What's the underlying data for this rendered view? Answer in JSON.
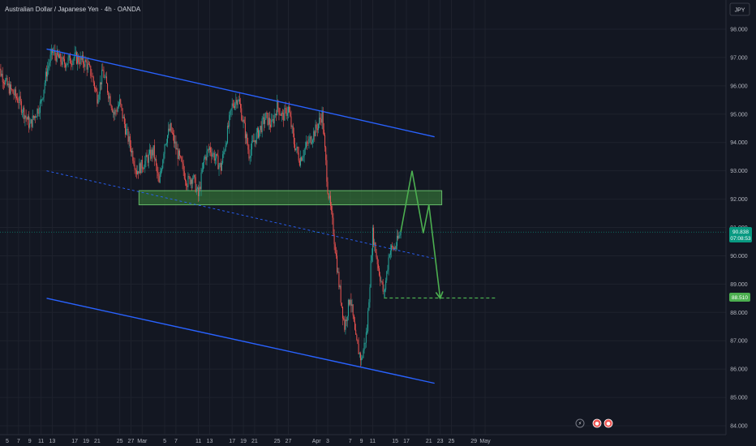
{
  "header": {
    "symbol_title": "Australian Dollar / Japanese Yen · 4h · OANDA",
    "currency_button": "JPY"
  },
  "colors": {
    "background": "#131722",
    "grid": "#1e222d",
    "candle_up": "#26a69a",
    "candle_down": "#ef5350",
    "channel_line": "#2962ff",
    "zone_fill": "#3c8a3c",
    "zone_border": "#66bb6a",
    "projection": "#4caf50",
    "axis_text": "#b2b5be"
  },
  "price_tags": {
    "current_price": "90.838",
    "countdown": "07:08:53",
    "target_price": "88.510"
  },
  "events": [
    {
      "icon": "lightning-icon",
      "glyph": "⚡"
    },
    {
      "icon": "flag-icon",
      "glyph": "●"
    },
    {
      "icon": "flag-icon",
      "glyph": "●"
    }
  ],
  "chart_data": {
    "type": "candlestick",
    "title": "Australian Dollar / Japanese Yen · 4h · OANDA",
    "xlabel": "",
    "ylabel": "",
    "y_axis_ticks": [
      "84.000",
      "85.000",
      "86.000",
      "87.000",
      "88.000",
      "89.000",
      "90.000",
      "91.000",
      "92.000",
      "93.000",
      "94.000",
      "95.000",
      "96.000",
      "97.000",
      "98.000"
    ],
    "ylim": [
      83.9,
      98.5
    ],
    "x_axis_ticks": [
      "5",
      "7",
      "9",
      "11",
      "13",
      "17",
      "19",
      "21",
      "25",
      "27",
      "Mar",
      "5",
      "7",
      "11",
      "13",
      "17",
      "19",
      "21",
      "25",
      "27",
      "Apr",
      "3",
      "7",
      "9",
      "11",
      "15",
      "17",
      "21",
      "23",
      "25",
      "29",
      "May"
    ],
    "x_axis_tick_days": [
      "Feb 5",
      "Feb 7",
      "Feb 9",
      "Feb 11",
      "Feb 13",
      "Feb 17",
      "Feb 19",
      "Feb 21",
      "Feb 25",
      "Feb 27",
      "Mar 1",
      "Mar 5",
      "Mar 7",
      "Mar 11",
      "Mar 13",
      "Mar 17",
      "Mar 19",
      "Mar 21",
      "Mar 25",
      "Mar 27",
      "Apr 1",
      "Apr 3",
      "Apr 7",
      "Apr 9",
      "Apr 11",
      "Apr 15",
      "Apr 17",
      "Apr 21",
      "Apr 23",
      "Apr 25",
      "Apr 29",
      "May 1"
    ],
    "price_path": [
      [
        "Feb 3",
        96.8
      ],
      [
        "Feb 5",
        96.0
      ],
      [
        "Feb 7",
        95.5
      ],
      [
        "Feb 9",
        94.6
      ],
      [
        "Feb 11",
        95.4
      ],
      [
        "Feb 12",
        96.5
      ],
      [
        "Feb 13",
        97.2
      ],
      [
        "Feb 15",
        96.8
      ],
      [
        "Feb 17",
        97.0
      ],
      [
        "Feb 19",
        96.8
      ],
      [
        "Feb 20",
        96.4
      ],
      [
        "Feb 21",
        95.6
      ],
      [
        "Feb 22",
        96.5
      ],
      [
        "Feb 24",
        95.0
      ],
      [
        "Feb 25",
        95.4
      ],
      [
        "Feb 26",
        94.5
      ],
      [
        "Feb 27",
        93.8
      ],
      [
        "Feb 28",
        93.0
      ],
      [
        "Mar 1",
        93.2
      ],
      [
        "Mar 3",
        93.7
      ],
      [
        "Mar 4",
        92.5
      ],
      [
        "Mar 5",
        94.0
      ],
      [
        "Mar 6",
        94.5
      ],
      [
        "Mar 7",
        93.8
      ],
      [
        "Mar 9",
        92.6
      ],
      [
        "Mar 10",
        92.8
      ],
      [
        "Mar 11",
        92.1
      ],
      [
        "Mar 12",
        93.4
      ],
      [
        "Mar 13",
        93.8
      ],
      [
        "Mar 15",
        93.1
      ],
      [
        "Mar 16",
        94.2
      ],
      [
        "Mar 17",
        95.3
      ],
      [
        "Mar 18",
        95.6
      ],
      [
        "Mar 19",
        94.7
      ],
      [
        "Mar 20",
        93.6
      ],
      [
        "Mar 21",
        94.1
      ],
      [
        "Mar 23",
        94.9
      ],
      [
        "Mar 24",
        94.6
      ],
      [
        "Mar 25",
        95.3
      ],
      [
        "Mar 26",
        94.9
      ],
      [
        "Mar 27",
        95.2
      ],
      [
        "Mar 28",
        94.0
      ],
      [
        "Mar 29",
        93.4
      ],
      [
        "Mar 30",
        93.8
      ],
      [
        "Apr 1",
        94.5
      ],
      [
        "Apr 2",
        95.0
      ],
      [
        "Apr 3",
        92.4
      ],
      [
        "Apr 4",
        90.9
      ],
      [
        "Apr 5",
        89.0
      ],
      [
        "Apr 6",
        87.5
      ],
      [
        "Apr 7",
        88.6
      ],
      [
        "Apr 8",
        87.0
      ],
      [
        "Apr 9",
        86.3
      ],
      [
        "Apr 10",
        87.4
      ],
      [
        "Apr 11",
        90.8
      ],
      [
        "Apr 12",
        89.6
      ],
      [
        "Apr 13",
        88.6
      ],
      [
        "Apr 14",
        90.2
      ],
      [
        "Apr 15",
        90.3
      ],
      [
        "Apr 16",
        90.85
      ]
    ],
    "upper_channel": [
      [
        "Feb 12",
        97.3
      ],
      [
        "Apr 22",
        94.2
      ]
    ],
    "lower_channel": [
      [
        "Feb 12",
        88.5
      ],
      [
        "Apr 22",
        85.5
      ]
    ],
    "mid_dashed_line": [
      [
        "Feb 12",
        93.0
      ],
      [
        "Apr 22",
        89.9
      ]
    ],
    "resistance_zone": {
      "from": "Mar 1",
      "to": "Apr 23",
      "y_low": 91.8,
      "y_high": 92.3
    },
    "projection": [
      [
        "Apr 16",
        90.85
      ],
      [
        "Apr 18",
        93.0
      ],
      [
        "Apr 20",
        90.8
      ],
      [
        "Apr 21",
        91.8
      ],
      [
        "Apr 23",
        88.5
      ]
    ],
    "target_level": {
      "from": "Apr 13",
      "to": "May 2",
      "y": 88.51
    },
    "grid": true
  }
}
